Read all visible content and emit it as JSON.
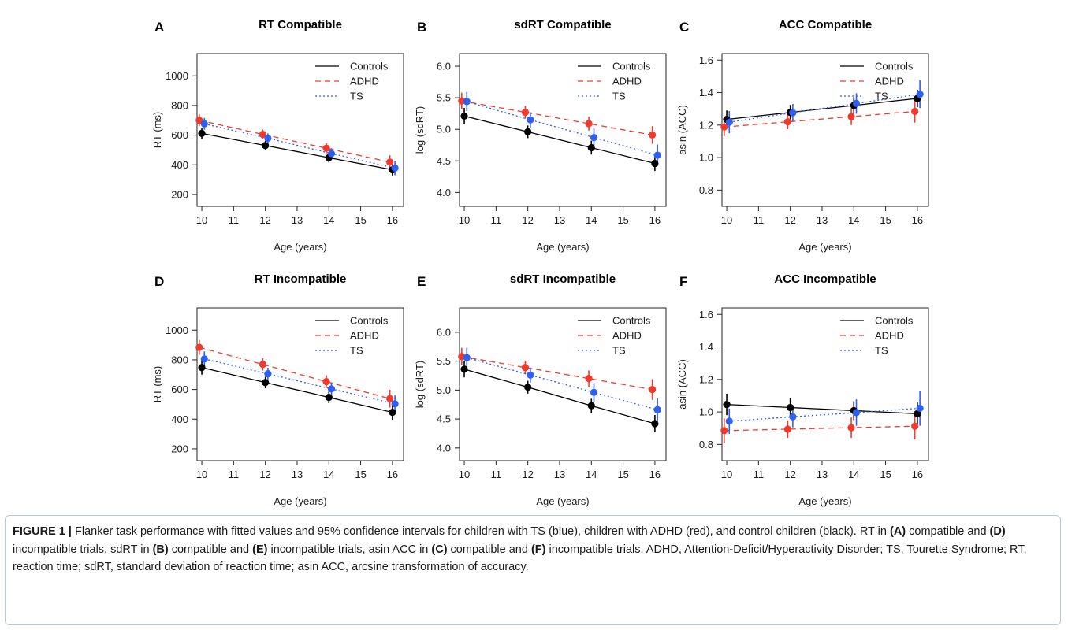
{
  "chart_data": [
    {
      "type": "line",
      "letter": "A",
      "title": "RT Compatible",
      "xlabel": "Age (years)",
      "ylabel": "RT (ms)",
      "xlim": [
        9.85,
        16.35
      ],
      "ylim": [
        120,
        1150
      ],
      "xticks": [
        10,
        11,
        12,
        13,
        14,
        15,
        16
      ],
      "yticks": [
        200,
        400,
        600,
        800,
        1000
      ],
      "legend_position": "top-right",
      "x": [
        10,
        12,
        14,
        16
      ],
      "series": [
        {
          "name": "Controls",
          "color": "#000000",
          "dash": "solid",
          "offset": 0,
          "values": [
            612,
            530,
            448,
            366
          ],
          "ci": [
            [
              575,
              650
            ],
            [
              498,
              562
            ],
            [
              416,
              480
            ],
            [
              328,
              404
            ]
          ]
        },
        {
          "name": "ADHD",
          "color": "#f03a2e",
          "dash": "dashed",
          "offset": -0.08,
          "values": [
            700,
            605,
            512,
            418
          ],
          "ci": [
            [
              660,
              740
            ],
            [
              572,
              638
            ],
            [
              478,
              546
            ],
            [
              372,
              464
            ]
          ]
        },
        {
          "name": "TS",
          "color": "#2f5ff0",
          "dash": "dotted",
          "offset": 0.08,
          "values": [
            676,
            579,
            476,
            378
          ],
          "ci": [
            [
              636,
              716
            ],
            [
              545,
              612
            ],
            [
              440,
              512
            ],
            [
              330,
              426
            ]
          ]
        }
      ]
    },
    {
      "type": "line",
      "letter": "B",
      "title": "sdRT Compatible",
      "xlabel": "Age (years)",
      "ylabel": "log (sdRT)",
      "xlim": [
        9.85,
        16.35
      ],
      "ylim": [
        3.78,
        6.2
      ],
      "xticks": [
        10,
        11,
        12,
        13,
        14,
        15,
        16
      ],
      "yticks": [
        4.0,
        4.5,
        5.0,
        5.5,
        6.0
      ],
      "legend_position": "top-right",
      "x": [
        10,
        12,
        14,
        16
      ],
      "series": [
        {
          "name": "Controls",
          "color": "#000000",
          "dash": "solid",
          "offset": 0,
          "values": [
            5.21,
            4.96,
            4.71,
            4.46
          ],
          "ci": [
            [
              5.08,
              5.34
            ],
            [
              4.86,
              5.06
            ],
            [
              4.6,
              4.82
            ],
            [
              4.34,
              4.58
            ]
          ]
        },
        {
          "name": "ADHD",
          "color": "#f03a2e",
          "dash": "dashed",
          "offset": -0.08,
          "values": [
            5.45,
            5.27,
            5.09,
            4.91
          ],
          "ci": [
            [
              5.32,
              5.58
            ],
            [
              5.17,
              5.37
            ],
            [
              4.98,
              5.2
            ],
            [
              4.77,
              5.05
            ]
          ]
        },
        {
          "name": "TS",
          "color": "#2f5ff0",
          "dash": "dotted",
          "offset": 0.08,
          "values": [
            5.44,
            5.15,
            4.87,
            4.59
          ],
          "ci": [
            [
              5.29,
              5.59
            ],
            [
              5.03,
              5.27
            ],
            [
              4.73,
              5.01
            ],
            [
              4.42,
              4.76
            ]
          ]
        }
      ]
    },
    {
      "type": "line",
      "letter": "C",
      "title": "ACC Compatible",
      "xlabel": "Age (years)",
      "ylabel": "asin (ACC)",
      "xlim": [
        9.85,
        16.35
      ],
      "ylim": [
        0.7,
        1.64
      ],
      "xticks": [
        10,
        11,
        12,
        13,
        14,
        15,
        16
      ],
      "yticks": [
        0.8,
        1.0,
        1.2,
        1.4,
        1.6
      ],
      "legend_position": "top-right",
      "x": [
        10,
        12,
        14,
        16
      ],
      "series": [
        {
          "name": "Controls",
          "color": "#000000",
          "dash": "solid",
          "offset": 0,
          "values": [
            1.235,
            1.278,
            1.321,
            1.364
          ],
          "ci": [
            [
              1.18,
              1.29
            ],
            [
              1.232,
              1.324
            ],
            [
              1.27,
              1.372
            ],
            [
              1.31,
              1.418
            ]
          ]
        },
        {
          "name": "ADHD",
          "color": "#f03a2e",
          "dash": "dashed",
          "offset": -0.08,
          "values": [
            1.188,
            1.22,
            1.252,
            1.284
          ],
          "ci": [
            [
              1.132,
              1.244
            ],
            [
              1.175,
              1.265
            ],
            [
              1.2,
              1.304
            ],
            [
              1.215,
              1.353
            ]
          ]
        },
        {
          "name": "TS",
          "color": "#2f5ff0",
          "dash": "dotted",
          "offset": 0.08,
          "values": [
            1.218,
            1.276,
            1.333,
            1.39
          ],
          "ci": [
            [
              1.15,
              1.286
            ],
            [
              1.222,
              1.33
            ],
            [
              1.27,
              1.396
            ],
            [
              1.305,
              1.475
            ]
          ]
        }
      ]
    },
    {
      "type": "line",
      "letter": "D",
      "title": "RT Incompatible",
      "xlabel": "Age (years)",
      "ylabel": "RT (ms)",
      "xlim": [
        9.85,
        16.35
      ],
      "ylim": [
        120,
        1150
      ],
      "xticks": [
        10,
        11,
        12,
        13,
        14,
        15,
        16
      ],
      "yticks": [
        200,
        400,
        600,
        800,
        1000
      ],
      "legend_position": "top-right",
      "x": [
        10,
        12,
        14,
        16
      ],
      "series": [
        {
          "name": "Controls",
          "color": "#000000",
          "dash": "solid",
          "offset": 0,
          "values": [
            748,
            647,
            547,
            446
          ],
          "ci": [
            [
              700,
              796
            ],
            [
              608,
              686
            ],
            [
              508,
              586
            ],
            [
              396,
              496
            ]
          ]
        },
        {
          "name": "ADHD",
          "color": "#f03a2e",
          "dash": "dashed",
          "offset": -0.08,
          "values": [
            884,
            769,
            653,
            538
          ],
          "ci": [
            [
              834,
              934
            ],
            [
              728,
              810
            ],
            [
              610,
              696
            ],
            [
              478,
              598
            ]
          ]
        },
        {
          "name": "TS",
          "color": "#2f5ff0",
          "dash": "dotted",
          "offset": 0.08,
          "values": [
            806,
            706,
            604,
            503
          ],
          "ci": [
            [
              756,
              856
            ],
            [
              666,
              746
            ],
            [
              560,
              648
            ],
            [
              446,
              560
            ]
          ]
        }
      ]
    },
    {
      "type": "line",
      "letter": "E",
      "title": "sdRT Incompatible",
      "xlabel": "Age (years)",
      "ylabel": "log (sdRT)",
      "xlim": [
        9.85,
        16.35
      ],
      "ylim": [
        3.78,
        6.42
      ],
      "xticks": [
        10,
        11,
        12,
        13,
        14,
        15,
        16
      ],
      "yticks": [
        4.0,
        4.5,
        5.0,
        5.5,
        6.0
      ],
      "legend_position": "top-right",
      "x": [
        10,
        12,
        14,
        16
      ],
      "series": [
        {
          "name": "Controls",
          "color": "#000000",
          "dash": "solid",
          "offset": 0,
          "values": [
            5.36,
            5.05,
            4.73,
            4.42
          ],
          "ci": [
            [
              5.22,
              5.5
            ],
            [
              4.94,
              5.16
            ],
            [
              4.61,
              4.85
            ],
            [
              4.27,
              4.57
            ]
          ]
        },
        {
          "name": "ADHD",
          "color": "#f03a2e",
          "dash": "dashed",
          "offset": -0.08,
          "values": [
            5.58,
            5.39,
            5.2,
            5.01
          ],
          "ci": [
            [
              5.43,
              5.73
            ],
            [
              5.27,
              5.51
            ],
            [
              5.06,
              5.34
            ],
            [
              4.83,
              5.19
            ]
          ]
        },
        {
          "name": "TS",
          "color": "#2f5ff0",
          "dash": "dotted",
          "offset": 0.08,
          "values": [
            5.56,
            5.26,
            4.96,
            4.66
          ],
          "ci": [
            [
              5.39,
              5.73
            ],
            [
              5.13,
              5.39
            ],
            [
              4.8,
              5.12
            ],
            [
              4.46,
              4.86
            ]
          ]
        }
      ]
    },
    {
      "type": "line",
      "letter": "F",
      "title": "ACC Incompatible",
      "xlabel": "Age (years)",
      "ylabel": "asin (ACC)",
      "xlim": [
        9.85,
        16.35
      ],
      "ylim": [
        0.7,
        1.64
      ],
      "xticks": [
        10,
        11,
        12,
        13,
        14,
        15,
        16
      ],
      "yticks": [
        0.8,
        1.0,
        1.2,
        1.4,
        1.6
      ],
      "legend_position": "top-right",
      "x": [
        10,
        12,
        14,
        16
      ],
      "series": [
        {
          "name": "Controls",
          "color": "#000000",
          "dash": "solid",
          "offset": 0,
          "values": [
            1.046,
            1.027,
            1.008,
            0.989
          ],
          "ci": [
            [
              0.98,
              1.112
            ],
            [
              0.97,
              1.084
            ],
            [
              0.95,
              1.066
            ],
            [
              0.92,
              1.058
            ]
          ]
        },
        {
          "name": "ADHD",
          "color": "#f03a2e",
          "dash": "dashed",
          "offset": -0.08,
          "values": [
            0.885,
            0.894,
            0.903,
            0.912
          ],
          "ci": [
            [
              0.81,
              0.96
            ],
            [
              0.84,
              0.948
            ],
            [
              0.84,
              0.966
            ],
            [
              0.83,
              0.994
            ]
          ]
        },
        {
          "name": "TS",
          "color": "#2f5ff0",
          "dash": "dotted",
          "offset": 0.08,
          "values": [
            0.943,
            0.97,
            0.996,
            1.023
          ],
          "ci": [
            [
              0.865,
              1.021
            ],
            [
              0.905,
              1.035
            ],
            [
              0.915,
              1.077
            ],
            [
              0.915,
              1.131
            ]
          ]
        }
      ]
    }
  ],
  "caption": {
    "segments": [
      {
        "text": "FIGURE 1 |",
        "bold": true
      },
      {
        "text": " Flanker task performance with fitted values and 95% confidence intervals for children with TS (blue), children with ADHD (red), and control children (black). RT in ",
        "bold": false
      },
      {
        "text": "(A)",
        "bold": true
      },
      {
        "text": " compatible and ",
        "bold": false
      },
      {
        "text": "(D)",
        "bold": true
      },
      {
        "text": " incompatible trials, sdRT in ",
        "bold": false
      },
      {
        "text": "(B)",
        "bold": true
      },
      {
        "text": " compatible and ",
        "bold": false
      },
      {
        "text": "(E)",
        "bold": true
      },
      {
        "text": " incompatible trials, asin ACC in ",
        "bold": false
      },
      {
        "text": "(C)",
        "bold": true
      },
      {
        "text": " compatible and ",
        "bold": false
      },
      {
        "text": "(F)",
        "bold": true
      },
      {
        "text": " incompatible trials. ADHD, Attention-Deficit/Hyperactivity Disorder; TS, Tourette Syndrome; RT, reaction time; sdRT, standard deviation of reaction time; asin ACC, arcsine transformation of accuracy.",
        "bold": false
      }
    ]
  }
}
